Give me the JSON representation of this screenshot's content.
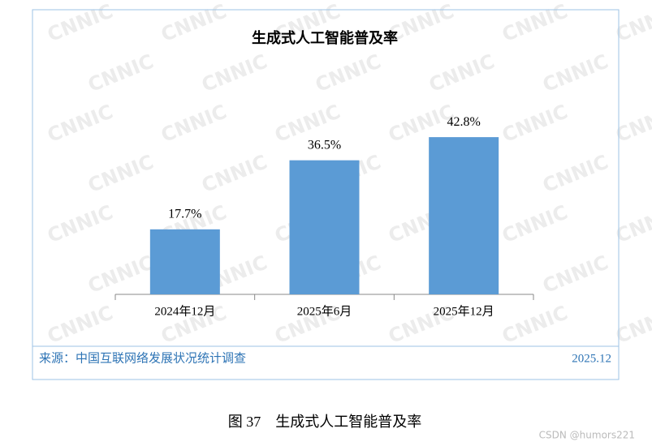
{
  "chart_data": {
    "type": "bar",
    "title": "生成式人工智能普及率",
    "categories": [
      "2024年12月",
      "2025年6月",
      "2025年12月"
    ],
    "values": [
      17.7,
      36.5,
      42.8
    ],
    "value_labels": [
      "17.7%",
      "36.5%",
      "42.8%"
    ],
    "color": "#5b9bd5",
    "ylim": [
      0,
      50
    ]
  },
  "source": "来源：中国互联网络发展状况统计调查",
  "date": "2025.12",
  "caption": "图 37　生成式人工智能普及率",
  "watermark": "CNNIC",
  "credit": "CSDN @humors221"
}
